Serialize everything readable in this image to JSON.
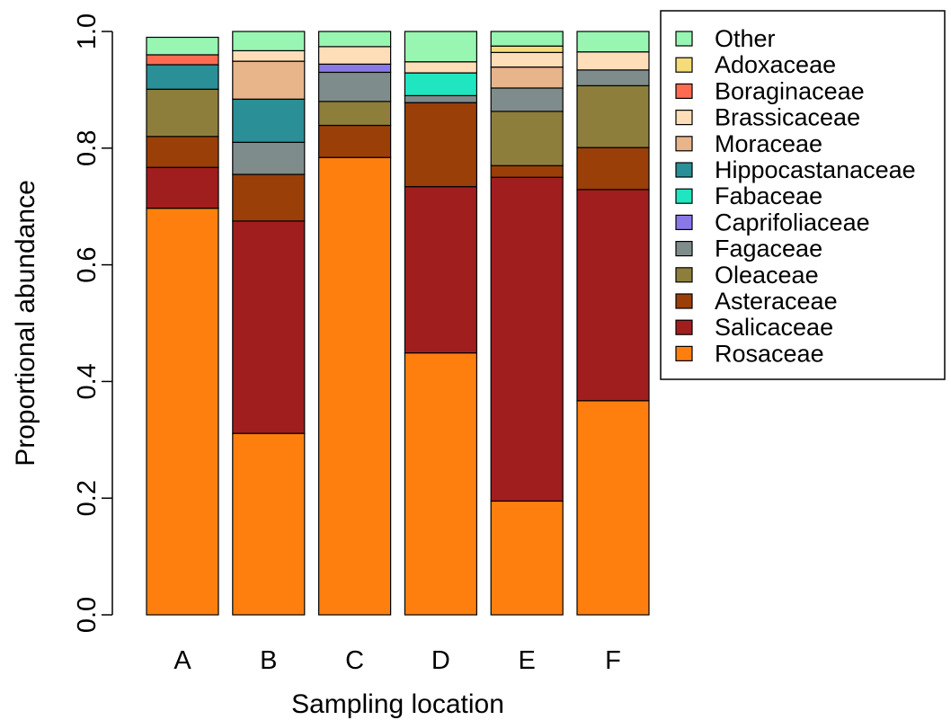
{
  "chart_data": {
    "type": "bar",
    "stacked": true,
    "title": "",
    "xlabel": "Sampling location",
    "ylabel": "Proportional abundance",
    "ylim": [
      0,
      1
    ],
    "yticks": [
      "0.0",
      "0.2",
      "0.4",
      "0.6",
      "0.8",
      "1.0"
    ],
    "categories": [
      "A",
      "B",
      "C",
      "D",
      "E",
      "F"
    ],
    "legend_position": "top-right",
    "series": [
      {
        "name": "Rosaceae",
        "color": "#FF7F0E",
        "values": [
          0.697,
          0.311,
          0.784,
          0.449,
          0.195,
          0.367
        ]
      },
      {
        "name": "Salicaceae",
        "color": "#A01E1E",
        "values": [
          0.07,
          0.364,
          0.0,
          0.285,
          0.555,
          0.362
        ]
      },
      {
        "name": "Asteraceae",
        "color": "#9A3F08",
        "values": [
          0.053,
          0.08,
          0.055,
          0.144,
          0.02,
          0.072
        ]
      },
      {
        "name": "Oleaceae",
        "color": "#8E7E3C",
        "values": [
          0.081,
          0.0,
          0.041,
          0.0,
          0.093,
          0.106
        ]
      },
      {
        "name": "Fagaceae",
        "color": "#7F8C8C",
        "values": [
          0.0,
          0.055,
          0.05,
          0.012,
          0.04,
          0.027
        ]
      },
      {
        "name": "Caprifoliaceae",
        "color": "#8A78E6",
        "values": [
          0.0,
          0.0,
          0.014,
          0.0,
          0.0,
          0.0
        ]
      },
      {
        "name": "Fabaceae",
        "color": "#1FE5C1",
        "values": [
          0.0,
          0.0,
          0.0,
          0.039,
          0.0,
          0.0
        ]
      },
      {
        "name": "Hippocastanaceae",
        "color": "#2A8F96",
        "values": [
          0.042,
          0.074,
          0.0,
          0.0,
          0.0,
          0.0
        ]
      },
      {
        "name": "Moraceae",
        "color": "#E8B48A",
        "values": [
          0.0,
          0.065,
          0.0,
          0.0,
          0.036,
          0.0
        ]
      },
      {
        "name": "Brassicaceae",
        "color": "#FDDEB9",
        "values": [
          0.0,
          0.018,
          0.03,
          0.019,
          0.025,
          0.031
        ]
      },
      {
        "name": "Boraginaceae",
        "color": "#FF6B50",
        "values": [
          0.017,
          0.0,
          0.0,
          0.0,
          0.0,
          0.0
        ]
      },
      {
        "name": "Adoxaceae",
        "color": "#F5DC78",
        "values": [
          0.0,
          0.0,
          0.0,
          0.0,
          0.011,
          0.0
        ]
      },
      {
        "name": "Other",
        "color": "#98F5B2",
        "values": [
          0.03,
          0.033,
          0.026,
          0.052,
          0.025,
          0.035
        ]
      }
    ],
    "legend_order": [
      "Other",
      "Adoxaceae",
      "Boraginaceae",
      "Brassicaceae",
      "Moraceae",
      "Hippocastanaceae",
      "Fabaceae",
      "Caprifoliaceae",
      "Fagaceae",
      "Oleaceae",
      "Asteraceae",
      "Salicaceae",
      "Rosaceae"
    ]
  }
}
